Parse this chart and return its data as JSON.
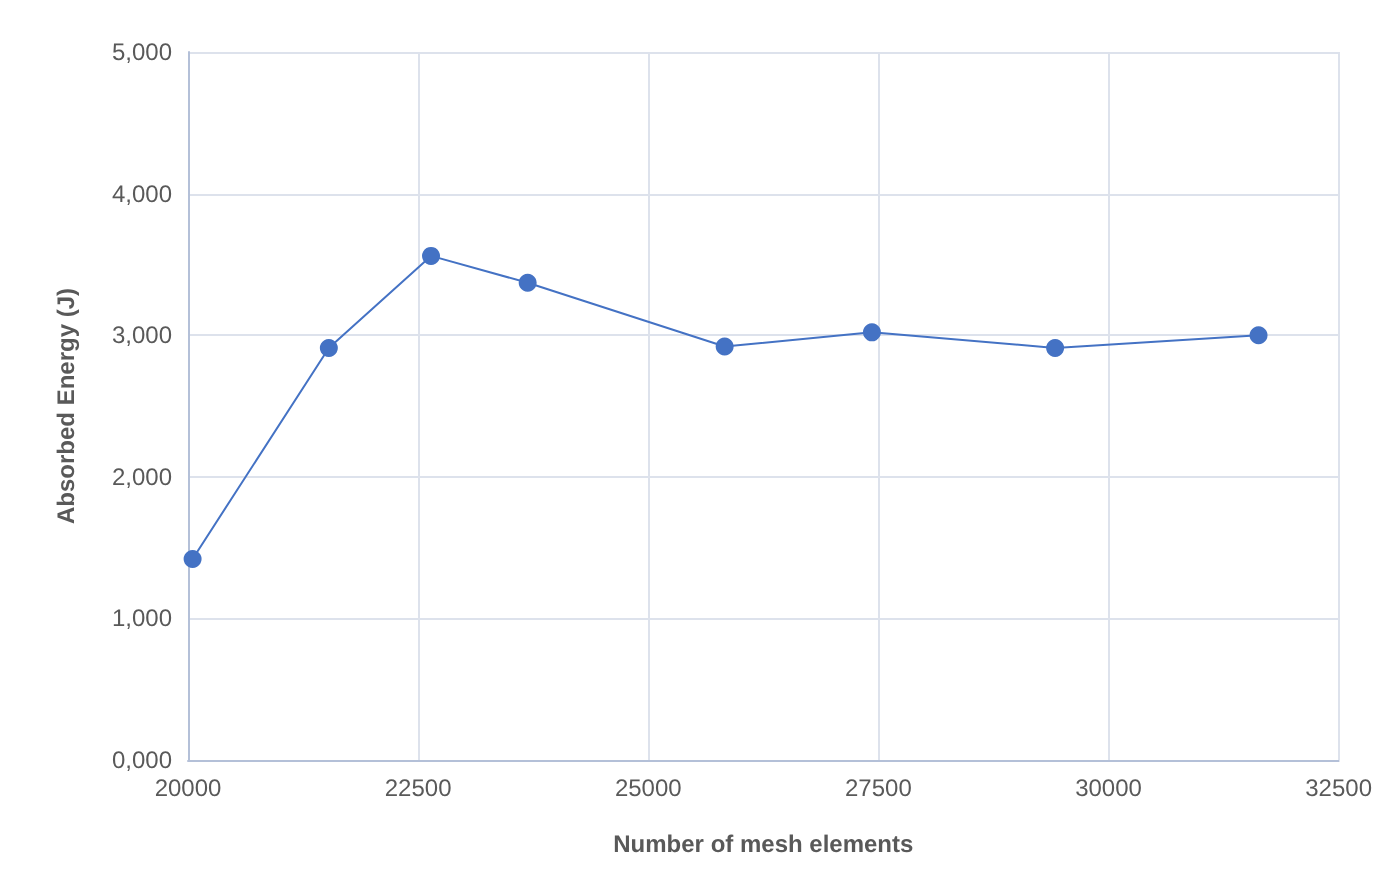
{
  "chart_data": {
    "type": "line",
    "xlabel": "Number of mesh elements",
    "ylabel": "Absorbed Energy (J)",
    "x": [
      20050,
      21530,
      22640,
      23690,
      25830,
      27430,
      29420,
      31630
    ],
    "series": [
      {
        "color": "#4472c4",
        "values": [
          1420,
          2910,
          3560,
          3370,
          2920,
          3020,
          2910,
          3000
        ]
      }
    ],
    "xlim": [
      20000,
      32500
    ],
    "xticks": [
      20000,
      22500,
      25000,
      27500,
      30000,
      32500
    ],
    "ylim": [
      0,
      5000
    ],
    "yticks": [
      {
        "value": 0,
        "label": "0,000"
      },
      {
        "value": 1000,
        "label": "1,000"
      },
      {
        "value": 2000,
        "label": "2,000"
      },
      {
        "value": 3000,
        "label": "3,000"
      },
      {
        "value": 4000,
        "label": "4,000"
      },
      {
        "value": 5000,
        "label": "5,000"
      }
    ],
    "grid": true,
    "marker": "circle",
    "line_style": "solid"
  }
}
